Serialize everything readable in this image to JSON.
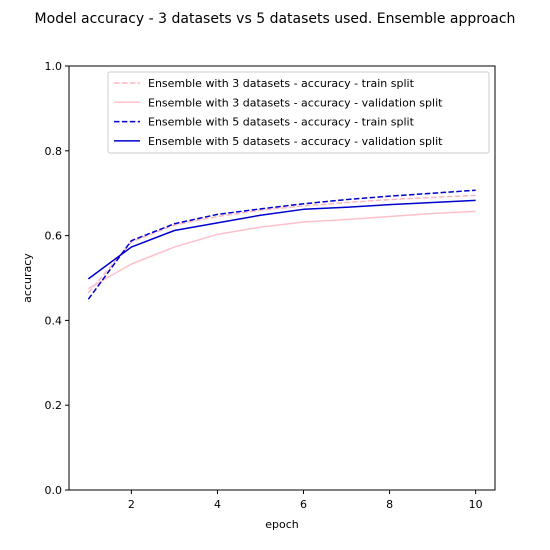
{
  "chart_data": {
    "type": "line",
    "title": "Model accuracy - 3 datasets vs 5 datasets used. Ensemble  approach",
    "xlabel": "epoch",
    "ylabel": "accuracy",
    "xlim": [
      0.55,
      10.45
    ],
    "ylim": [
      0.0,
      1.0
    ],
    "xticks": [
      2,
      4,
      6,
      8,
      10
    ],
    "yticks": [
      0.0,
      0.2,
      0.4,
      0.6,
      0.8,
      1.0
    ],
    "xtick_labels": [
      "2",
      "4",
      "6",
      "8",
      "10"
    ],
    "ytick_labels": [
      "0.0",
      "0.2",
      "0.4",
      "0.6",
      "0.8",
      "1.0"
    ],
    "grid": false,
    "legend_position": "top-right",
    "x": [
      1,
      2,
      3,
      4,
      5,
      6,
      7,
      8,
      9,
      10
    ],
    "series": [
      {
        "name": "Ensemble with 3 datasets - accuracy - train split",
        "color": "#ffb6c1",
        "style": "dashed",
        "values": [
          0.465,
          0.585,
          0.625,
          0.645,
          0.66,
          0.67,
          0.678,
          0.685,
          0.69,
          0.695
        ]
      },
      {
        "name": "Ensemble with 3 datasets - accuracy - validation split",
        "color": "#ffc0cb",
        "style": "solid",
        "values": [
          0.475,
          0.533,
          0.573,
          0.603,
          0.62,
          0.632,
          0.638,
          0.645,
          0.652,
          0.657
        ]
      },
      {
        "name": "Ensemble with 5 datasets - accuracy - train split",
        "color": "#0000cd",
        "style": "dashed",
        "values": [
          0.45,
          0.588,
          0.628,
          0.65,
          0.663,
          0.675,
          0.685,
          0.693,
          0.7,
          0.707
        ]
      },
      {
        "name": "Ensemble with 5 datasets - accuracy - validation split",
        "color": "#0000cd",
        "style": "solid",
        "values": [
          0.498,
          0.573,
          0.612,
          0.63,
          0.648,
          0.662,
          0.667,
          0.673,
          0.678,
          0.683
        ]
      }
    ]
  }
}
